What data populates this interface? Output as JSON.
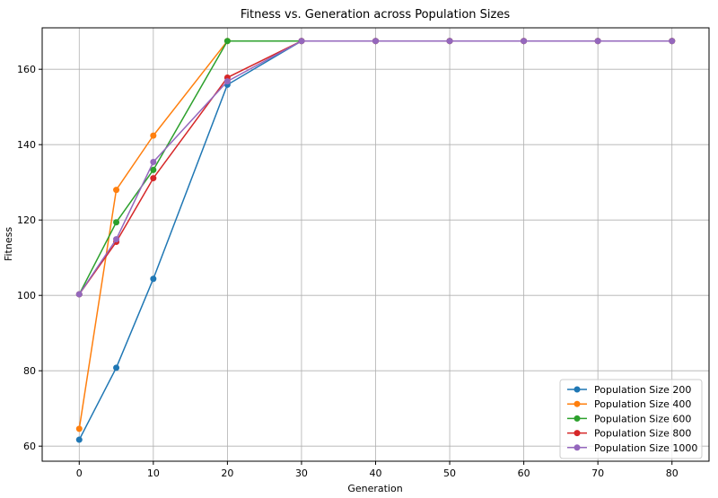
{
  "chart_data": {
    "type": "line",
    "title": "Fitness vs. Generation across Population Sizes",
    "xlabel": "Generation",
    "ylabel": "Fitness",
    "xlim": [
      -5,
      85
    ],
    "ylim": [
      56,
      171
    ],
    "xticks": [
      0,
      10,
      20,
      30,
      40,
      50,
      60,
      70,
      80
    ],
    "yticks": [
      60,
      80,
      100,
      120,
      140,
      160
    ],
    "grid": true,
    "legend_position": "lower right",
    "x": [
      0,
      5,
      10,
      20,
      30,
      40,
      50,
      60,
      70,
      80
    ],
    "series": [
      {
        "name": "Population Size 200",
        "color": "#1f77b4",
        "values": [
          61.7,
          80.8,
          104.4,
          155.9,
          167.5,
          167.5,
          167.5,
          167.5,
          167.5,
          167.5
        ]
      },
      {
        "name": "Population Size 400",
        "color": "#ff7f0e",
        "values": [
          64.6,
          128.0,
          142.4,
          167.5,
          167.5,
          167.5,
          167.5,
          167.5,
          167.5,
          167.5
        ]
      },
      {
        "name": "Population Size 600",
        "color": "#2ca02c",
        "values": [
          100.3,
          119.4,
          133.3,
          167.5,
          167.5,
          167.5,
          167.5,
          167.5,
          167.5,
          167.5
        ]
      },
      {
        "name": "Population Size 800",
        "color": "#d62728",
        "values": [
          100.3,
          114.2,
          131.1,
          157.8,
          167.5,
          167.5,
          167.5,
          167.5,
          167.5,
          167.5
        ]
      },
      {
        "name": "Population Size 1000",
        "color": "#9467bd",
        "values": [
          100.3,
          114.9,
          135.4,
          156.8,
          167.5,
          167.5,
          167.5,
          167.5,
          167.5,
          167.5
        ]
      }
    ]
  }
}
